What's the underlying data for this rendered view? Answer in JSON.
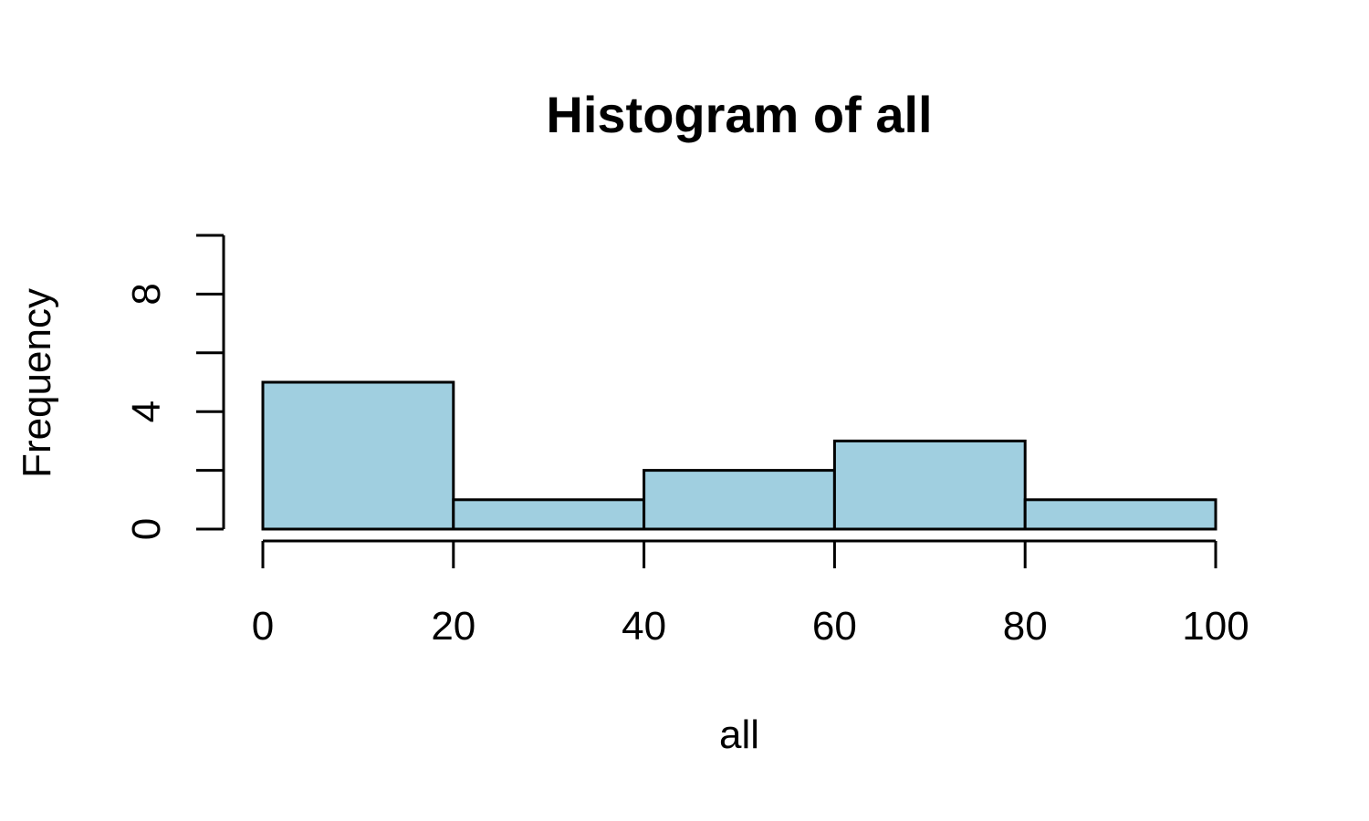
{
  "chart_data": {
    "type": "bar",
    "subtype": "histogram",
    "title": "Histogram of all",
    "xlabel": "all",
    "ylabel": "Frequency",
    "bins": [
      {
        "start": 0,
        "end": 20,
        "count": 5
      },
      {
        "start": 20,
        "end": 40,
        "count": 1
      },
      {
        "start": 40,
        "end": 60,
        "count": 2
      },
      {
        "start": 60,
        "end": 80,
        "count": 3
      },
      {
        "start": 80,
        "end": 100,
        "count": 1
      }
    ],
    "xlim": [
      0,
      100
    ],
    "ylim": [
      0,
      10
    ],
    "x_ticks": [
      0,
      20,
      40,
      60,
      80,
      100
    ],
    "x_tick_labels": [
      "0",
      "20",
      "40",
      "60",
      "80",
      "100"
    ],
    "y_ticks": [
      0,
      2,
      4,
      6,
      8,
      10
    ],
    "y_tick_labels": [
      "0",
      "",
      "4",
      "",
      "8",
      ""
    ],
    "bar_color": "#a0cfe0",
    "edge_color": "#000000",
    "grid": false,
    "legend": "none"
  }
}
